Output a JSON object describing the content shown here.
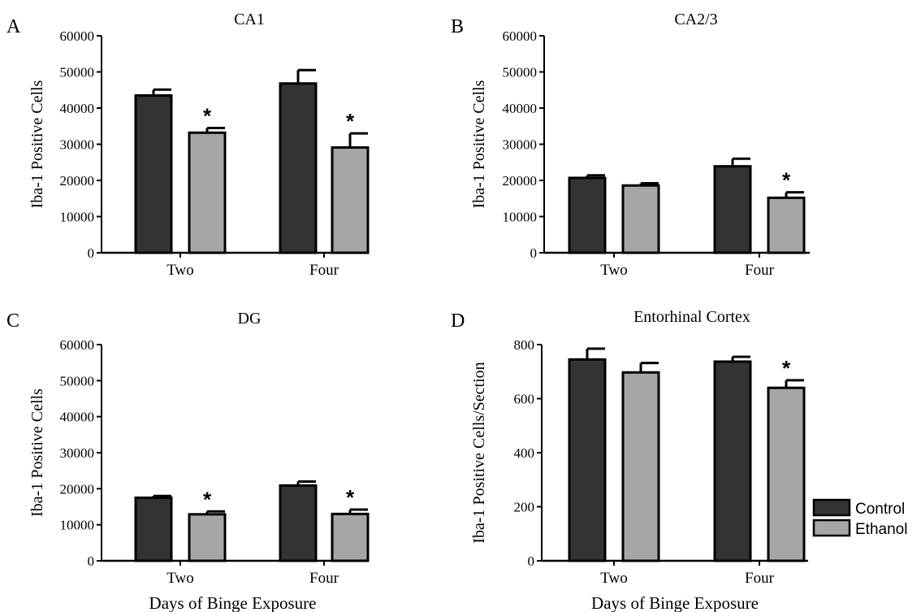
{
  "colors": {
    "control": "#333333",
    "ethanol": "#a6a6a6",
    "stroke": "#000000"
  },
  "legend": {
    "placement": "right of panel D",
    "items": [
      {
        "label": "Control",
        "color": "#333333"
      },
      {
        "label": "Ethanol",
        "color": "#a6a6a6"
      }
    ]
  },
  "chart_data": [
    {
      "type": "bar",
      "panel_letter": "A",
      "title": "CA1",
      "xlabel": "",
      "ylabel": "Iba-1 Positive Cells",
      "ylim": [
        0,
        60000
      ],
      "yticks": [
        "0",
        "10000",
        "20000",
        "30000",
        "40000",
        "50000",
        "60000"
      ],
      "categories": [
        "Two",
        "Four"
      ],
      "series": [
        {
          "name": "Control",
          "values": [
            43500,
            46800
          ],
          "errors": [
            1600,
            3700
          ],
          "significant": [
            false,
            false
          ]
        },
        {
          "name": "Ethanol",
          "values": [
            33200,
            29100
          ],
          "errors": [
            1300,
            3900
          ],
          "significant": [
            true,
            true
          ]
        }
      ]
    },
    {
      "type": "bar",
      "panel_letter": "B",
      "title": "CA2/3",
      "xlabel": "",
      "ylabel": "Iba-1 Positive Cells",
      "ylim": [
        0,
        60000
      ],
      "yticks": [
        "0",
        "10000",
        "20000",
        "30000",
        "40000",
        "50000",
        "60000"
      ],
      "categories": [
        "Two",
        "Four"
      ],
      "series": [
        {
          "name": "Control",
          "values": [
            20700,
            23900
          ],
          "errors": [
            700,
            2100
          ],
          "significant": [
            false,
            false
          ]
        },
        {
          "name": "Ethanol",
          "values": [
            18600,
            15200
          ],
          "errors": [
            600,
            1500
          ],
          "significant": [
            false,
            true
          ]
        }
      ]
    },
    {
      "type": "bar",
      "panel_letter": "C",
      "title": "DG",
      "xlabel": "Days of Binge Exposure",
      "ylabel": "Iba-1 Positive Cells",
      "ylim": [
        0,
        60000
      ],
      "yticks": [
        "0",
        "10000",
        "20000",
        "30000",
        "40000",
        "50000",
        "60000"
      ],
      "categories": [
        "Two",
        "Four"
      ],
      "series": [
        {
          "name": "Control",
          "values": [
            17500,
            20900
          ],
          "errors": [
            500,
            1100
          ],
          "significant": [
            false,
            false
          ]
        },
        {
          "name": "Ethanol",
          "values": [
            12900,
            13000
          ],
          "errors": [
            800,
            1200
          ],
          "significant": [
            true,
            true
          ]
        }
      ]
    },
    {
      "type": "bar",
      "panel_letter": "D",
      "title": "Entorhinal Cortex",
      "xlabel": "Days of Binge Exposure",
      "ylabel": "Iba-1 Positive Cells/Section",
      "ylim": [
        0,
        800
      ],
      "yticks": [
        "0",
        "200",
        "400",
        "600",
        "800"
      ],
      "categories": [
        "Two",
        "Four"
      ],
      "series": [
        {
          "name": "Control",
          "values": [
            745,
            737
          ],
          "errors": [
            40,
            18
          ],
          "significant": [
            false,
            false
          ]
        },
        {
          "name": "Ethanol",
          "values": [
            697,
            640
          ],
          "errors": [
            35,
            28
          ],
          "significant": [
            false,
            true
          ]
        }
      ]
    }
  ]
}
